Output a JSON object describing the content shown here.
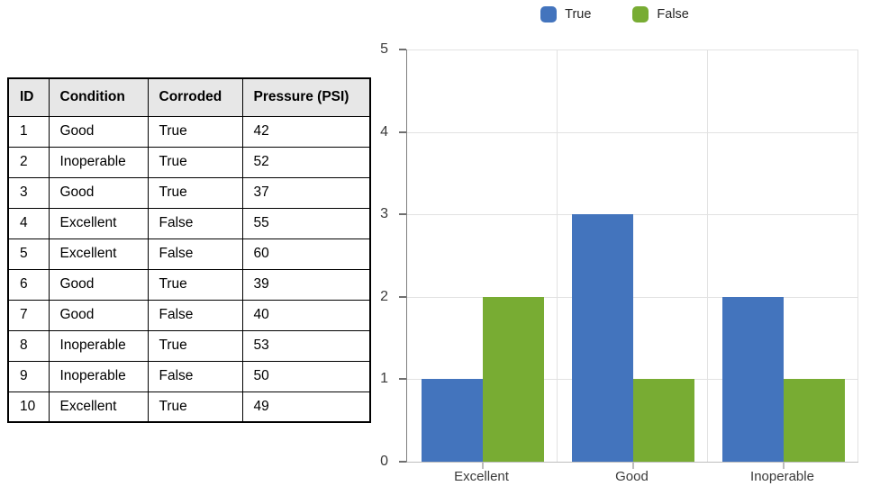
{
  "colors": {
    "series_true": "#4374BD",
    "series_false": "#78AC33",
    "table_header_bg": "#E7E7E7",
    "table_border": "#000000",
    "gridline": "#E2E2E2",
    "axis_line": "#7F7F7F",
    "tick_label": "#3A3A3A"
  },
  "table": {
    "headers": [
      "ID",
      "Condition",
      "Corroded",
      "Pressure (PSI)"
    ],
    "rows": [
      [
        "1",
        "Good",
        "True",
        "42"
      ],
      [
        "2",
        "Inoperable",
        "True",
        "52"
      ],
      [
        "3",
        "Good",
        "True",
        "37"
      ],
      [
        "4",
        "Excellent",
        "False",
        "55"
      ],
      [
        "5",
        "Excellent",
        "False",
        "60"
      ],
      [
        "6",
        "Good",
        "True",
        "39"
      ],
      [
        "7",
        "Good",
        "False",
        "40"
      ],
      [
        "8",
        "Inoperable",
        "True",
        "53"
      ],
      [
        "9",
        "Inoperable",
        "False",
        "50"
      ],
      [
        "10",
        "Excellent",
        "True",
        "49"
      ]
    ]
  },
  "chart_data": {
    "type": "bar",
    "title": "",
    "categories": [
      "Excellent",
      "Good",
      "Inoperable"
    ],
    "series": [
      {
        "name": "True",
        "color": "#4374BD",
        "values": [
          1,
          3,
          2
        ]
      },
      {
        "name": "False",
        "color": "#78AC33",
        "values": [
          2,
          1,
          1
        ]
      }
    ],
    "xlabel": "",
    "ylabel": "",
    "ylim": [
      0,
      5
    ],
    "yticks": [
      0,
      1,
      2,
      3,
      4,
      5
    ],
    "grid": true,
    "legend_position": "top-center"
  }
}
